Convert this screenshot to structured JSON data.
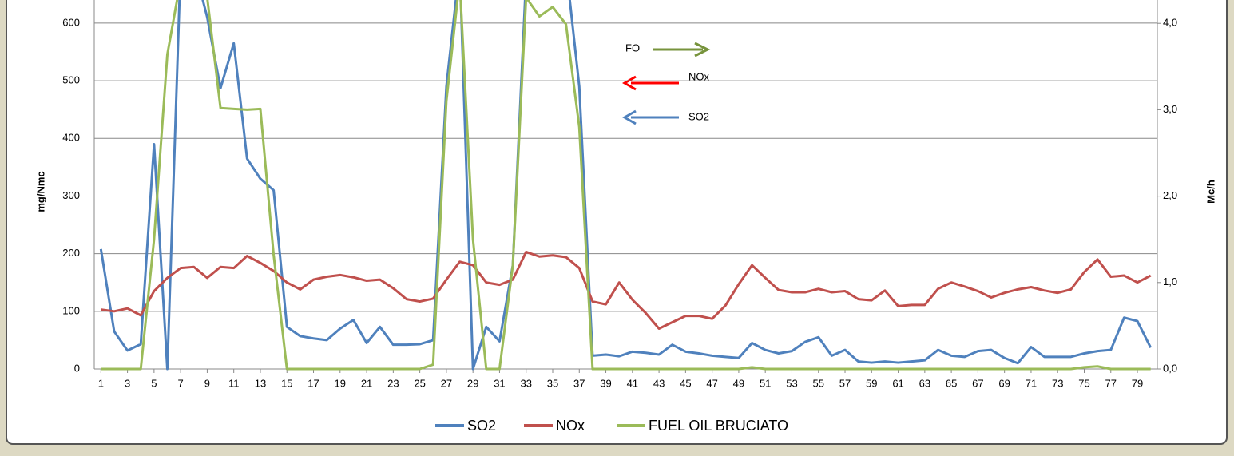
{
  "chart_data": {
    "type": "line",
    "y_label": "mg/Nmc",
    "y2_label": "Mc/h",
    "x": [
      1,
      2,
      3,
      4,
      5,
      6,
      7,
      8,
      9,
      10,
      11,
      12,
      13,
      14,
      15,
      16,
      17,
      18,
      19,
      20,
      21,
      22,
      23,
      24,
      25,
      26,
      27,
      28,
      29,
      30,
      31,
      32,
      33,
      34,
      35,
      36,
      37,
      38,
      39,
      40,
      41,
      42,
      43,
      44,
      45,
      46,
      47,
      48,
      49,
      50,
      51,
      52,
      53,
      54,
      55,
      56,
      57,
      58,
      59,
      60,
      61,
      62,
      63,
      64,
      65,
      66,
      67,
      68,
      69,
      70,
      71,
      72,
      73,
      74,
      75,
      76,
      77,
      78,
      79,
      80
    ],
    "xlim": [
      0.5,
      80.5
    ],
    "xticks": [
      1,
      3,
      5,
      7,
      9,
      11,
      13,
      15,
      17,
      19,
      21,
      23,
      25,
      27,
      29,
      31,
      33,
      35,
      37,
      39,
      41,
      43,
      45,
      47,
      49,
      51,
      53,
      55,
      57,
      59,
      61,
      63,
      65,
      67,
      69,
      71,
      73,
      75,
      77,
      79
    ],
    "ylim": [
      0,
      640
    ],
    "yticks": [
      0,
      100,
      200,
      300,
      400,
      500,
      600
    ],
    "y2lim": [
      0,
      4.27
    ],
    "y2ticks": [
      {
        "value": 0,
        "label": "0,0"
      },
      {
        "value": 1,
        "label": "1,0"
      },
      {
        "value": 2,
        "label": "2,0"
      },
      {
        "value": 3,
        "label": "3,0"
      },
      {
        "value": 4,
        "label": "4,0"
      }
    ],
    "grid": true,
    "legend": "bottom",
    "series": [
      {
        "name": "SO2",
        "color": "#4f81bd",
        "values": [
          208,
          65,
          32,
          43,
          390,
          0,
          700,
          700,
          610,
          487,
          565,
          365,
          330,
          310,
          73,
          57,
          53,
          50,
          70,
          85,
          45,
          73,
          42,
          42,
          43,
          50,
          490,
          700,
          0,
          73,
          48,
          180,
          680,
          700,
          700,
          700,
          490,
          23,
          25,
          22,
          30,
          28,
          25,
          42,
          30,
          27,
          23,
          21,
          19,
          45,
          33,
          27,
          31,
          47,
          55,
          23,
          33,
          13,
          11,
          13,
          11,
          13,
          15,
          33,
          23,
          21,
          31,
          33,
          19,
          10,
          38,
          21,
          21,
          21,
          27,
          31,
          33,
          89,
          83,
          37
        ]
      },
      {
        "name": "NOx",
        "color": "#c0504d",
        "values": [
          103,
          100,
          105,
          93,
          135,
          158,
          175,
          177,
          158,
          177,
          175,
          196,
          184,
          170,
          150,
          138,
          155,
          160,
          163,
          159,
          153,
          155,
          140,
          121,
          117,
          122,
          155,
          186,
          180,
          150,
          146,
          155,
          203,
          195,
          197,
          194,
          175,
          117,
          112,
          150,
          120,
          97,
          70,
          81,
          92,
          92,
          87,
          110,
          147,
          180,
          158,
          137,
          133,
          133,
          139,
          133,
          135,
          121,
          119,
          136,
          109,
          111,
          111,
          139,
          150,
          143,
          135,
          124,
          132,
          138,
          142,
          136,
          132,
          138,
          168,
          190,
          160,
          162,
          150,
          162
        ]
      },
      {
        "name": "FUEL OIL BRUCIATO",
        "color": "#9bbb59",
        "axis": "y2",
        "values": [
          0,
          0,
          0,
          0,
          1.5,
          3.64,
          4.5,
          4.5,
          4.3,
          3.02,
          3.01,
          3.0,
          3.01,
          1.32,
          0,
          0,
          0,
          0,
          0,
          0,
          0,
          0,
          0,
          0,
          0,
          0.05,
          3.1,
          4.5,
          1.5,
          0,
          0,
          1.2,
          4.3,
          4.08,
          4.19,
          3.99,
          2.8,
          0,
          0,
          0,
          0,
          0,
          0,
          0,
          0,
          0,
          0,
          0,
          0,
          0.02,
          0,
          0,
          0,
          0,
          0,
          0,
          0,
          0,
          0,
          0,
          0,
          0,
          0,
          0,
          0,
          0,
          0,
          0,
          0,
          0,
          0,
          0,
          0,
          0,
          0.02,
          0.03,
          0,
          0,
          0,
          0
        ]
      }
    ],
    "annotations": [
      "FO",
      "NOx",
      "SO2"
    ]
  }
}
